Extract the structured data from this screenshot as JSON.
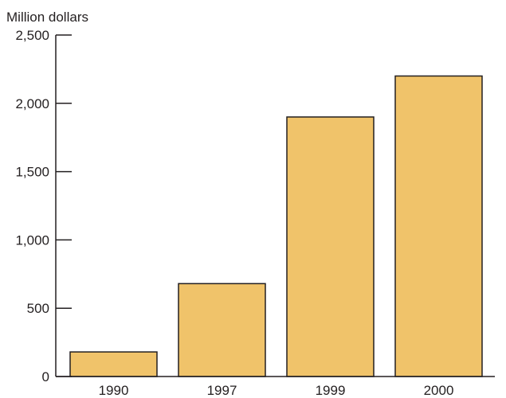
{
  "chart_data": {
    "type": "bar",
    "ylabel": "Million dollars",
    "categories": [
      "1990",
      "1997",
      "1999",
      "2000"
    ],
    "values": [
      180,
      680,
      1900,
      2200
    ],
    "ylim": [
      0,
      2500
    ],
    "yticks": [
      0,
      500,
      1000,
      1500,
      2000,
      2500
    ],
    "ytick_labels": [
      "0",
      "500",
      "1,000",
      "1,500",
      "2,000",
      "2,500"
    ],
    "grid": false,
    "bar_color": "#f0c36a",
    "bar_edge_color": "#231f20"
  }
}
